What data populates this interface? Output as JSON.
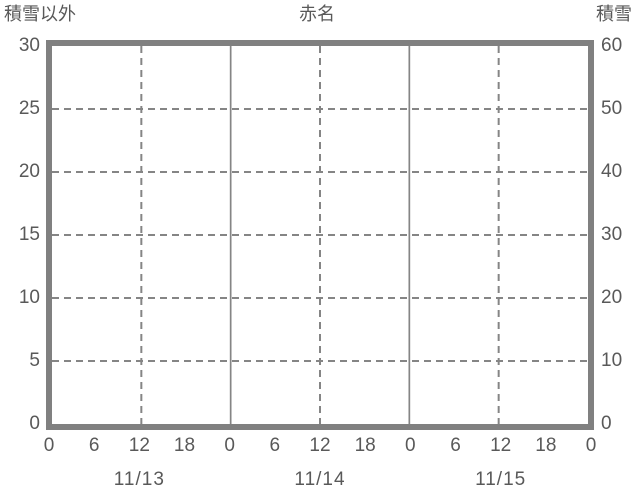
{
  "chart_data": {
    "type": "line",
    "title": "赤名",
    "series": [],
    "left_axis": {
      "label": "積雪以外",
      "ticks_top_to_bottom": [
        "30",
        "25",
        "20",
        "15",
        "10",
        "5",
        "0"
      ],
      "range": [
        0,
        30
      ]
    },
    "right_axis": {
      "label": "積雪",
      "ticks_top_to_bottom": [
        "60",
        "50",
        "40",
        "30",
        "20",
        "10",
        "0"
      ],
      "range": [
        0,
        60
      ]
    },
    "x_axis": {
      "hour_tick_labels": [
        "0",
        "6",
        "12",
        "18",
        "0",
        "6",
        "12",
        "18",
        "0",
        "6",
        "12",
        "18",
        "0"
      ],
      "hours_per_tick": 6,
      "range_hours": [
        0,
        72
      ],
      "day_labels": [
        "11/13",
        "11/14",
        "11/15"
      ]
    },
    "grid": {
      "horizontal_style": "dashed",
      "noon_vertical_style": "dashed",
      "midnight_vertical_style": "solid",
      "legend": "none"
    }
  },
  "colors": {
    "frame": "#808080",
    "gridline": "#858585",
    "text": "#595959",
    "background": "#ffffff"
  }
}
